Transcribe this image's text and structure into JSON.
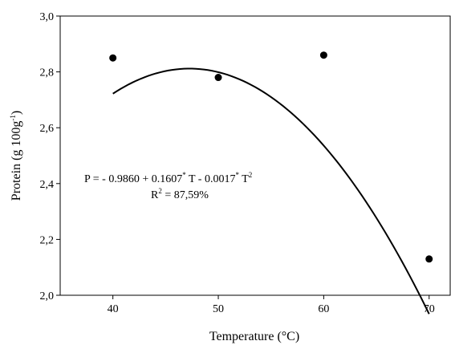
{
  "chart_data": {
    "type": "scatter",
    "xlabel": "Temperature (°C)",
    "ylabel": "Protein (g 100g",
    "ylabel_sup": "-1",
    "ylabel_close": ")",
    "xlim": [
      35,
      72
    ],
    "ylim": [
      2.0,
      3.0
    ],
    "x_ticks": [
      40,
      50,
      60,
      70
    ],
    "x_tick_labels": [
      "40",
      "50",
      "60",
      "70"
    ],
    "y_ticks": [
      2.0,
      2.2,
      2.4,
      2.6,
      2.8,
      3.0
    ],
    "y_tick_labels": [
      "2,0",
      "2,2",
      "2,4",
      "2,6",
      "2,8",
      "3,0"
    ],
    "grid": false,
    "points": [
      {
        "x": 40,
        "y": 2.85
      },
      {
        "x": 50,
        "y": 2.78
      },
      {
        "x": 60,
        "y": 2.86
      },
      {
        "x": 70,
        "y": 2.13
      }
    ],
    "fit": {
      "type": "quadratic",
      "coefficients": [
        -0.986,
        0.1607,
        -0.0017
      ],
      "x_range": [
        40,
        70
      ]
    },
    "annotation": {
      "equation_parts": [
        "P = - 0.9860 + 0.1607",
        "*",
        " T - 0.0017",
        "*",
        " T",
        "2"
      ],
      "r2_label": "R",
      "r2_sup": "2",
      "r2_value": " = 87,59%"
    }
  }
}
